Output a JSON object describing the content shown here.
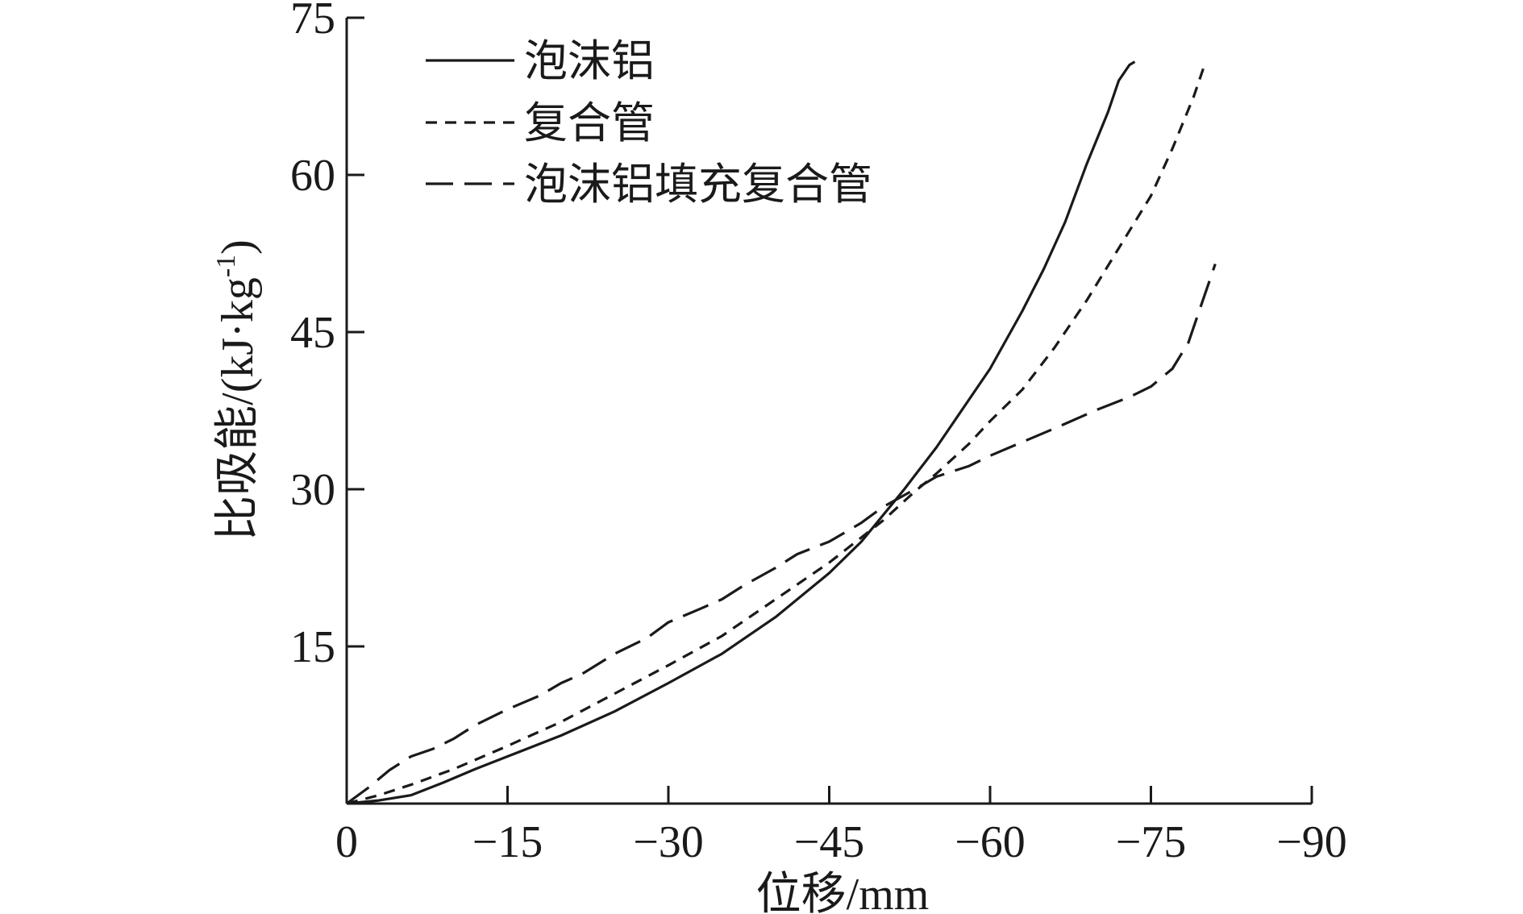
{
  "chart_data": {
    "type": "line",
    "title": "",
    "xlabel": "位移/mm",
    "ylabel": "比吸能/(kJ·kg",
    "ylabel_sup": "-1",
    "ylabel_suffix": ")",
    "xlim": [
      0,
      -90
    ],
    "ylim": [
      0,
      75
    ],
    "x_ticks": [
      0,
      -15,
      -30,
      -45,
      -60,
      -75,
      -90
    ],
    "x_tick_labels": [
      "0",
      "−15",
      "−30",
      "−45",
      "−60",
      "−75",
      "−90"
    ],
    "y_ticks": [
      15,
      30,
      45,
      60,
      75
    ],
    "y_tick_labels": [
      "15",
      "30",
      "45",
      "60",
      "75"
    ],
    "grid": false,
    "legend_position": "top-left",
    "series": [
      {
        "name": "泡沫铝",
        "style": "solid",
        "points": [
          [
            0,
            0
          ],
          [
            -3,
            0.3
          ],
          [
            -6,
            0.8
          ],
          [
            -9,
            2
          ],
          [
            -12,
            3.3
          ],
          [
            -15,
            4.5
          ],
          [
            -20,
            6.5
          ],
          [
            -25,
            8.8
          ],
          [
            -30,
            11.5
          ],
          [
            -35,
            14.3
          ],
          [
            -40,
            17.8
          ],
          [
            -45,
            22
          ],
          [
            -48,
            25
          ],
          [
            -50,
            27.5
          ],
          [
            -52,
            30
          ],
          [
            -55,
            34
          ],
          [
            -58,
            38.5
          ],
          [
            -60,
            41.5
          ],
          [
            -63,
            47
          ],
          [
            -65,
            51
          ],
          [
            -67,
            55.5
          ],
          [
            -69,
            61
          ],
          [
            -71,
            66
          ],
          [
            -72,
            69
          ],
          [
            -73,
            70.5
          ],
          [
            -73.5,
            70.8
          ]
        ]
      },
      {
        "name": "复合管",
        "style": "short-dash",
        "points": [
          [
            0,
            0
          ],
          [
            -3,
            0.8
          ],
          [
            -6,
            1.8
          ],
          [
            -10,
            3.3
          ],
          [
            -15,
            5.5
          ],
          [
            -20,
            7.8
          ],
          [
            -25,
            10.5
          ],
          [
            -30,
            13.2
          ],
          [
            -35,
            16
          ],
          [
            -40,
            19.5
          ],
          [
            -45,
            23
          ],
          [
            -50,
            27
          ],
          [
            -53,
            29.8
          ],
          [
            -55,
            31.5
          ],
          [
            -58,
            34.3
          ],
          [
            -60,
            36.5
          ],
          [
            -63,
            39.5
          ],
          [
            -66,
            43.5
          ],
          [
            -69,
            48
          ],
          [
            -72,
            53
          ],
          [
            -75,
            58
          ],
          [
            -77,
            62.5
          ],
          [
            -79,
            67.5
          ],
          [
            -80,
            70.5
          ]
        ]
      },
      {
        "name": "泡沫铝填充复合管",
        "style": "long-dash",
        "points": [
          [
            0,
            0
          ],
          [
            -2,
            1.5
          ],
          [
            -4,
            3.2
          ],
          [
            -6,
            4.5
          ],
          [
            -8,
            5.2
          ],
          [
            -10,
            6.2
          ],
          [
            -12,
            7.5
          ],
          [
            -15,
            9
          ],
          [
            -18,
            10.3
          ],
          [
            -20,
            11.5
          ],
          [
            -22,
            12.4
          ],
          [
            -25,
            14.3
          ],
          [
            -28,
            15.8
          ],
          [
            -30,
            17.3
          ],
          [
            -33,
            18.6
          ],
          [
            -35,
            19.5
          ],
          [
            -37,
            20.8
          ],
          [
            -40,
            22.5
          ],
          [
            -42,
            23.8
          ],
          [
            -45,
            25
          ],
          [
            -48,
            26.8
          ],
          [
            -50,
            28.3
          ],
          [
            -53,
            30
          ],
          [
            -55,
            31.2
          ],
          [
            -58,
            32.2
          ],
          [
            -60,
            33.2
          ],
          [
            -63,
            34.5
          ],
          [
            -66,
            35.8
          ],
          [
            -70,
            37.6
          ],
          [
            -73,
            38.8
          ],
          [
            -75,
            39.8
          ],
          [
            -77,
            41.5
          ],
          [
            -78.5,
            44
          ],
          [
            -79.5,
            47
          ],
          [
            -80.5,
            50
          ],
          [
            -81,
            51.5
          ]
        ]
      }
    ]
  }
}
